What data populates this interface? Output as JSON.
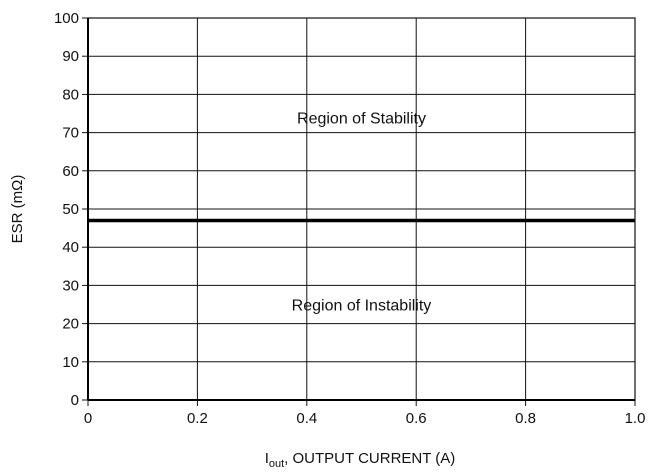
{
  "chart_data": {
    "type": "line",
    "title": "",
    "xlabel_main": "I",
    "xlabel_sub": "out",
    "xlabel_rest": ", OUTPUT CURRENT (A)",
    "ylabel": "ESR (mΩ)",
    "xlim": [
      0,
      1.0
    ],
    "ylim": [
      0,
      100
    ],
    "x_ticks": [
      0,
      0.2,
      0.4,
      0.6,
      0.8,
      1.0
    ],
    "x_tick_labels": [
      "0",
      "0.2",
      "0.4",
      "0.6",
      "0.8",
      "1.0"
    ],
    "y_ticks": [
      0,
      10,
      20,
      30,
      40,
      50,
      60,
      70,
      80,
      90,
      100
    ],
    "y_tick_labels": [
      "0",
      "10",
      "20",
      "30",
      "40",
      "50",
      "60",
      "70",
      "80",
      "90",
      "100"
    ],
    "grid": true,
    "series": [
      {
        "x": [
          0,
          1.0
        ],
        "y": [
          47,
          47
        ],
        "color": "#000000"
      }
    ],
    "annotations": [
      {
        "text": "Region of Stability",
        "x": 0.5,
        "y": 74
      },
      {
        "text": "Region of Instability",
        "x": 0.5,
        "y": 25
      }
    ]
  }
}
